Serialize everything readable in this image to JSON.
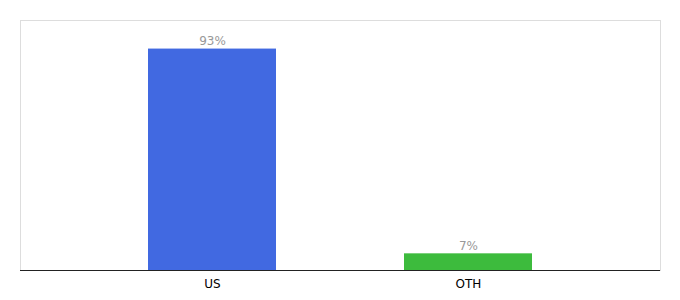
{
  "chart_data": {
    "type": "bar",
    "categories": [
      "US",
      "OTH"
    ],
    "values": [
      93,
      7
    ],
    "value_labels": [
      "93%",
      "7%"
    ],
    "data_labels": true,
    "colors": [
      "#4169e1",
      "#3dbb3d"
    ],
    "ylim": [
      0,
      105
    ],
    "tick_labels": "x"
  }
}
